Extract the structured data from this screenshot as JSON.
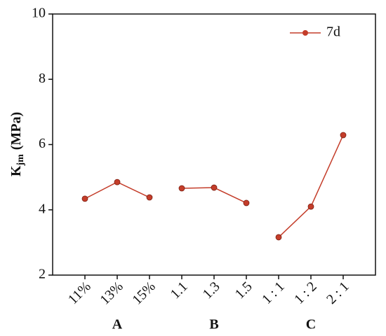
{
  "chart_data": {
    "type": "line",
    "ylabel": "K",
    "ylabel_sub": "jm",
    "ylabel_unit": "(MPa)",
    "categories": [
      "11%",
      "13%",
      "15%",
      "1.1",
      "1.3",
      "1.5",
      "1 : 1",
      "1 : 2",
      "2 : 1"
    ],
    "group_labels": [
      null,
      "A",
      null,
      null,
      "B",
      null,
      null,
      "C",
      null
    ],
    "series": [
      {
        "name": "7d",
        "color": "#c43d2a",
        "values": [
          4.34,
          4.85,
          4.38,
          4.66,
          4.68,
          4.21,
          3.16,
          4.1,
          6.29
        ]
      }
    ],
    "ylim": [
      2,
      10
    ],
    "yticks": [
      2,
      4,
      6,
      8,
      10
    ],
    "legend": "upper right"
  }
}
